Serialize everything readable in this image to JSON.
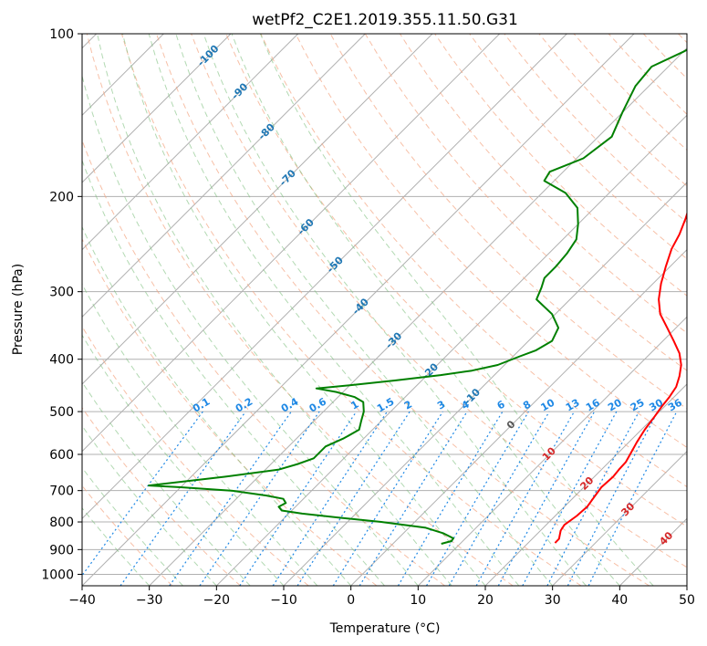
{
  "chart_data": {
    "type": "line",
    "title": "wetPf2_C2E1.2019.355.11.50.G31",
    "xlabel": "Temperature (°C)",
    "ylabel": "Pressure (hPa)",
    "xlim": [
      -40,
      50
    ],
    "ylim": [
      1050,
      100
    ],
    "y_scale": "log",
    "x_ticks": [
      -40,
      -30,
      -20,
      -10,
      0,
      10,
      20,
      30,
      40,
      50
    ],
    "y_ticks": [
      100,
      200,
      300,
      400,
      500,
      600,
      700,
      800,
      900,
      1000
    ],
    "grid": true,
    "skew": true,
    "series": [
      {
        "color": "#ff0000",
        "points": [
          [
            24.0,
            875
          ],
          [
            24.0,
            860
          ],
          [
            23.0,
            830
          ],
          [
            22.7,
            810
          ],
          [
            23.2,
            780
          ],
          [
            23.4,
            750
          ],
          [
            23.0,
            720
          ],
          [
            22.6,
            690
          ],
          [
            22.8,
            660
          ],
          [
            22.6,
            640
          ],
          [
            22.5,
            620
          ],
          [
            22.0,
            600
          ],
          [
            21.2,
            570
          ],
          [
            20.5,
            540
          ],
          [
            20.0,
            510
          ],
          [
            19.6,
            490
          ],
          [
            19.3,
            470
          ],
          [
            18.8,
            450
          ],
          [
            17.7,
            430
          ],
          [
            16.3,
            410
          ],
          [
            14.3,
            390
          ],
          [
            11.6,
            370
          ],
          [
            8.7,
            350
          ],
          [
            5.6,
            330
          ],
          [
            3.2,
            310
          ],
          [
            1.2,
            290
          ],
          [
            -0.6,
            270
          ],
          [
            -2.4,
            250
          ],
          [
            -3.4,
            235
          ],
          [
            -4.8,
            220
          ],
          [
            -6.5,
            205
          ],
          [
            -8.9,
            190
          ],
          [
            -11.0,
            175
          ],
          [
            -13.6,
            160
          ],
          [
            -17.8,
            145
          ],
          [
            -21.8,
            132
          ],
          [
            -24.2,
            120
          ],
          [
            -26.3,
            110
          ],
          [
            -28.8,
            100
          ]
        ]
      },
      {
        "color": "#008000",
        "points": [
          [
            7.2,
            878
          ],
          [
            8.3,
            868
          ],
          [
            8.2,
            858
          ],
          [
            6.0,
            840
          ],
          [
            2.5,
            820
          ],
          [
            -5.0,
            800
          ],
          [
            -12.0,
            785
          ],
          [
            -18.0,
            772
          ],
          [
            -21.5,
            762
          ],
          [
            -22.5,
            750
          ],
          [
            -22.0,
            738
          ],
          [
            -23.0,
            725
          ],
          [
            -26.0,
            715
          ],
          [
            -32.0,
            700
          ],
          [
            -40.0,
            690
          ],
          [
            -45.0,
            685
          ],
          [
            -35.0,
            660
          ],
          [
            -28.0,
            640
          ],
          [
            -26.0,
            625
          ],
          [
            -24.5,
            610
          ],
          [
            -24.5,
            580
          ],
          [
            -23.0,
            560
          ],
          [
            -22.0,
            540
          ],
          [
            -23.0,
            520
          ],
          [
            -24.0,
            500
          ],
          [
            -25.5,
            480
          ],
          [
            -27.5,
            470
          ],
          [
            -31.0,
            460
          ],
          [
            -34.5,
            453
          ],
          [
            -30.0,
            447
          ],
          [
            -24.0,
            438
          ],
          [
            -18.0,
            428
          ],
          [
            -14.0,
            420
          ],
          [
            -11.0,
            410
          ],
          [
            -9.0,
            395
          ],
          [
            -7.5,
            385
          ],
          [
            -6.5,
            370
          ],
          [
            -7.5,
            350
          ],
          [
            -10.5,
            330
          ],
          [
            -15.0,
            310
          ],
          [
            -16.0,
            295
          ],
          [
            -17.0,
            283
          ],
          [
            -17.0,
            270
          ],
          [
            -17.3,
            255
          ],
          [
            -18.0,
            240
          ],
          [
            -20.0,
            225
          ],
          [
            -22.5,
            210
          ],
          [
            -26.5,
            197
          ],
          [
            -31.5,
            187
          ],
          [
            -32.0,
            180
          ],
          [
            -29.0,
            170
          ],
          [
            -28.0,
            155
          ],
          [
            -30.0,
            140
          ],
          [
            -32.0,
            125
          ],
          [
            -32.5,
            115
          ],
          [
            -30.0,
            108
          ],
          [
            -27.5,
            100
          ]
        ]
      }
    ],
    "dry_adiabat_labels": [
      "-100",
      "-90",
      "-80",
      "-70",
      "-60",
      "-50",
      "-40",
      "-30",
      "-20",
      "-10",
      "0",
      "10",
      "20",
      "30",
      "40"
    ],
    "mixing_ratio_labels": [
      "0.1",
      "0.2",
      "0.4",
      "0.6",
      "1",
      "1.5",
      "2",
      "3",
      "4",
      "6",
      "8",
      "10",
      "13",
      "16",
      "20",
      "25",
      "30",
      "36"
    ],
    "mixing_ratio_values": [
      0.1,
      0.2,
      0.4,
      0.6,
      1,
      1.5,
      2,
      3,
      4,
      6,
      8,
      10,
      13,
      16,
      20,
      25,
      30,
      36
    ]
  }
}
